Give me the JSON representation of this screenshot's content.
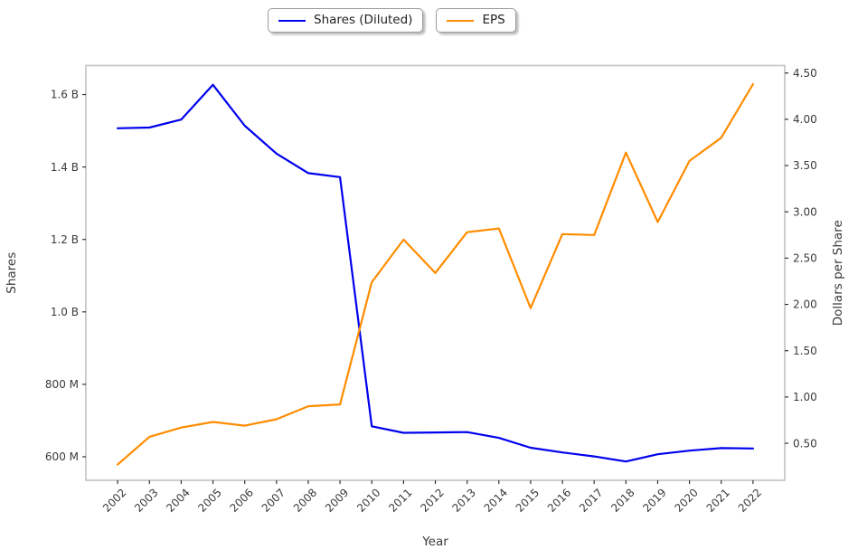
{
  "legend": [
    {
      "label": "Shares (Diluted)",
      "color": "#0000ee"
    },
    {
      "label": "EPS",
      "color": "#ff8c00"
    }
  ],
  "chart_data": {
    "type": "line",
    "title": "",
    "xlabel": "Year",
    "ylabel_left": "Shares",
    "ylabel_right": "Dollars per Share",
    "grid": false,
    "legend_position": "top-center",
    "x": [
      2002,
      2003,
      2004,
      2005,
      2006,
      2007,
      2008,
      2009,
      2010,
      2011,
      2012,
      2013,
      2014,
      2015,
      2016,
      2017,
      2018,
      2019,
      2020,
      2021,
      2022
    ],
    "series": [
      {
        "name": "Shares (Diluted)",
        "axis": "left",
        "color": "#0000ee",
        "units": "shares (millions)",
        "values_millions": [
          1507,
          1509,
          1531,
          1627,
          1514,
          1437,
          1383,
          1372,
          684,
          666,
          667,
          668,
          652,
          625,
          612,
          601,
          587,
          607,
          617,
          624,
          623
        ]
      },
      {
        "name": "EPS",
        "axis": "right",
        "color": "#ff8c00",
        "units": "dollars per share",
        "values": [
          0.27,
          0.57,
          0.67,
          0.73,
          0.69,
          0.76,
          0.9,
          0.92,
          2.24,
          2.7,
          2.34,
          2.78,
          2.82,
          1.96,
          2.76,
          2.75,
          3.64,
          2.89,
          3.55,
          3.8,
          4.38
        ]
      }
    ],
    "xlim": [
      2001,
      2023
    ],
    "ylim_left_millions": [
      535,
      1680
    ],
    "ylim_right": [
      0.1,
      4.58
    ],
    "yticks_left": [
      {
        "value": 600,
        "label": "600 M"
      },
      {
        "value": 800,
        "label": "800 M"
      },
      {
        "value": 1000,
        "label": "1.0 B"
      },
      {
        "value": 1200,
        "label": "1.2 B"
      },
      {
        "value": 1400,
        "label": "1.4 B"
      },
      {
        "value": 1600,
        "label": "1.6 B"
      }
    ],
    "yticks_right": [
      {
        "value": 0.5,
        "label": "0.50"
      },
      {
        "value": 1.0,
        "label": "1.00"
      },
      {
        "value": 1.5,
        "label": "1.50"
      },
      {
        "value": 2.0,
        "label": "2.00"
      },
      {
        "value": 2.5,
        "label": "2.50"
      },
      {
        "value": 3.0,
        "label": "3.00"
      },
      {
        "value": 3.5,
        "label": "3.50"
      },
      {
        "value": 4.0,
        "label": "4.00"
      },
      {
        "value": 4.5,
        "label": "4.50"
      }
    ]
  }
}
